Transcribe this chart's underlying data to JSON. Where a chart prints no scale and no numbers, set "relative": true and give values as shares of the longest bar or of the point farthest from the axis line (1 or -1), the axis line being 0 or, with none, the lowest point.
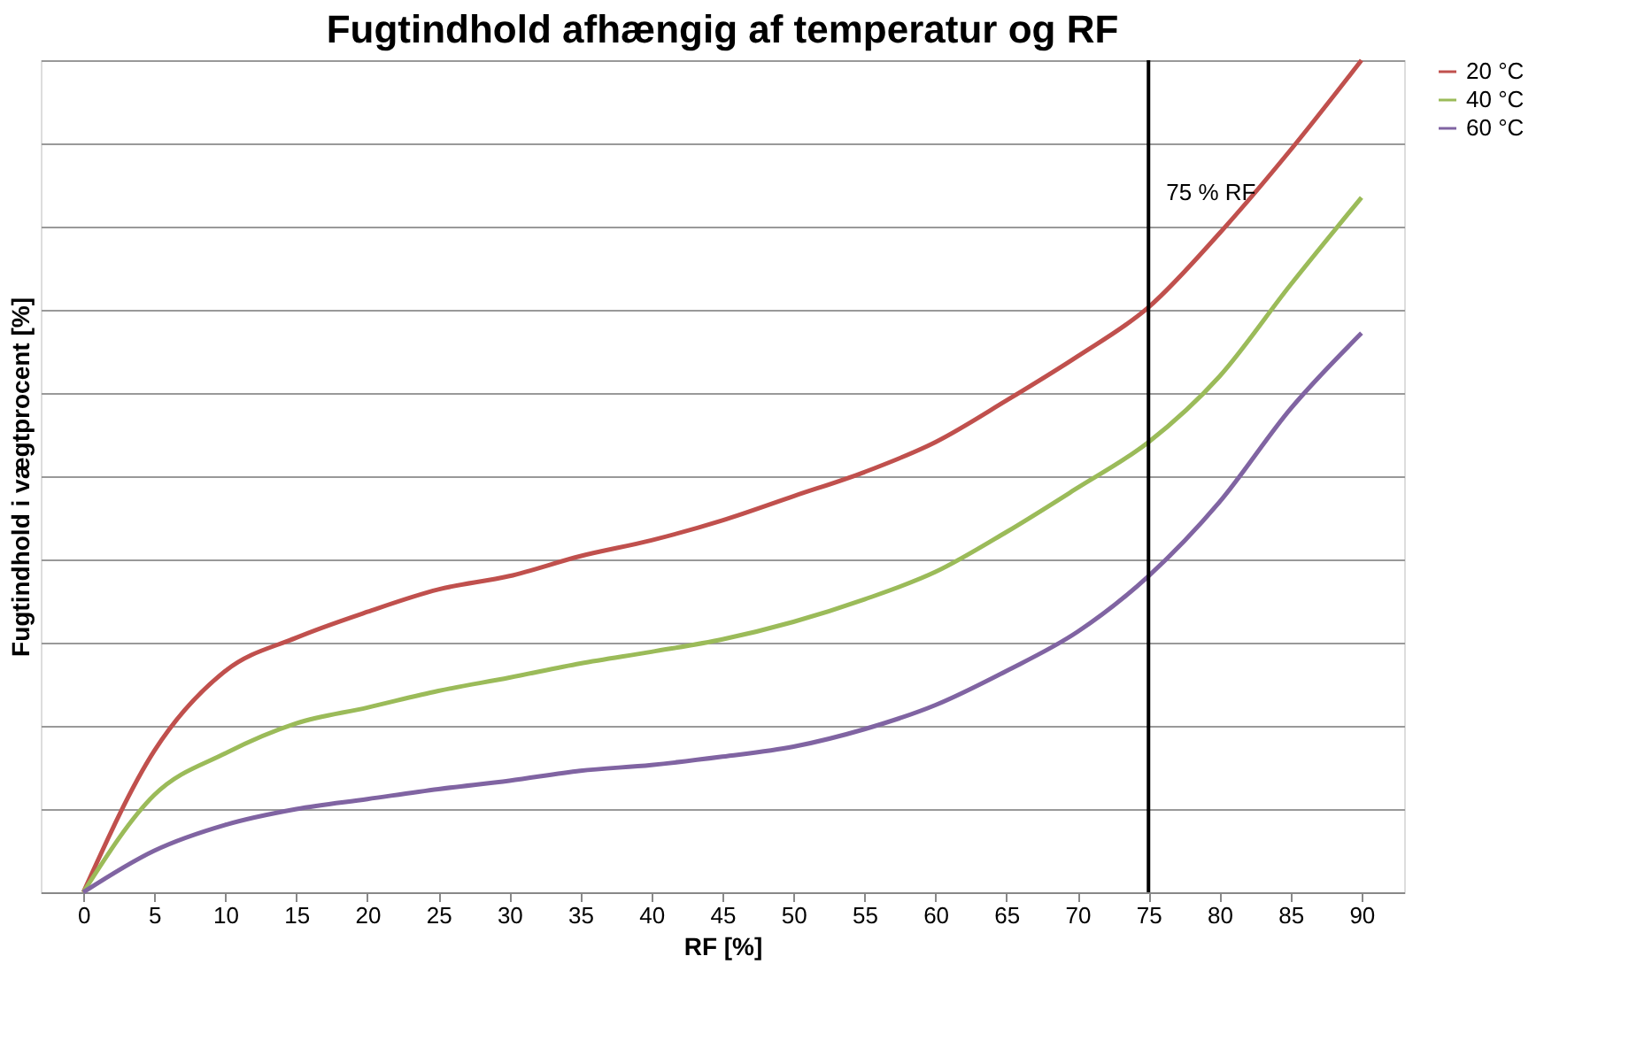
{
  "chart_data": {
    "type": "line",
    "title": "Fugtindhold afhængig af temperatur og RF",
    "xlabel": "RF [%]",
    "ylabel": "Fugtindhold i vægtprocent [%]",
    "relative": true,
    "x": [
      0,
      5,
      10,
      15,
      20,
      25,
      30,
      35,
      40,
      45,
      50,
      55,
      60,
      65,
      70,
      75,
      80,
      85,
      90
    ],
    "xlim": [
      -3,
      93
    ],
    "xticks": [
      0,
      5,
      10,
      15,
      20,
      25,
      30,
      35,
      40,
      45,
      50,
      55,
      60,
      65,
      70,
      75,
      80,
      85,
      90
    ],
    "series": [
      {
        "name": "20 °C",
        "color": "#c0504d",
        "values": [
          0,
          0.17,
          0.266,
          0.306,
          0.337,
          0.364,
          0.38,
          0.404,
          0.423,
          0.447,
          0.476,
          0.505,
          0.541,
          0.591,
          0.644,
          0.703,
          0.792,
          0.892,
          1
        ]
      },
      {
        "name": "40 °C",
        "color": "#9bbb59",
        "values": [
          0,
          0.117,
          0.167,
          0.203,
          0.222,
          0.242,
          0.258,
          0.275,
          0.289,
          0.304,
          0.325,
          0.352,
          0.385,
          0.433,
          0.486,
          0.541,
          0.62,
          0.73,
          0.835
        ]
      },
      {
        "name": "60 °C",
        "color": "#8064a2",
        "values": [
          0,
          0.05,
          0.081,
          0.1,
          0.112,
          0.124,
          0.134,
          0.146,
          0.153,
          0.163,
          0.175,
          0.196,
          0.225,
          0.266,
          0.313,
          0.38,
          0.469,
          0.581,
          0.672
        ]
      }
    ],
    "ref_lines": [
      {
        "axis": "x",
        "value": 75,
        "label": "75 % RF",
        "color": "#000000"
      }
    ],
    "grid": "y",
    "legend": "right",
    "marker": "none",
    "line_style": "solid"
  }
}
